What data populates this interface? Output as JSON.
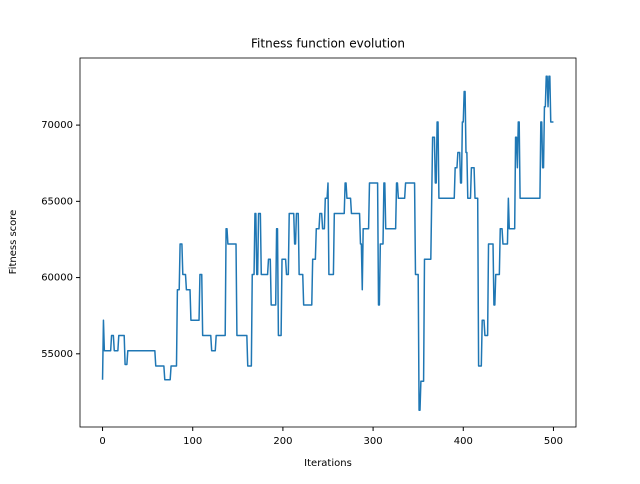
{
  "chart_data": {
    "type": "line",
    "title": "Fitness function evolution",
    "x_label": "Iterations",
    "y_label": "Fitness score",
    "xlim": [
      -25,
      525
    ],
    "ylim": [
      50200,
      74400
    ],
    "xticks": [
      0,
      100,
      200,
      300,
      400,
      500
    ],
    "yticks": [
      55000,
      60000,
      65000,
      70000
    ],
    "grid": false,
    "series": [
      {
        "color": "#1f77b4",
        "x": [
          0,
          1,
          2,
          9,
          10,
          12,
          13,
          17,
          18,
          24,
          25,
          27,
          28,
          58,
          59,
          68,
          69,
          75,
          76,
          82,
          83,
          85,
          86,
          88,
          89,
          92,
          93,
          97,
          98,
          107,
          108,
          110,
          111,
          120,
          121,
          125,
          126,
          136,
          137,
          138,
          139,
          148,
          149,
          160,
          161,
          165,
          166,
          168,
          169,
          170,
          171,
          172,
          173,
          175,
          176,
          183,
          184,
          186,
          187,
          192,
          193,
          194,
          195,
          198,
          199,
          203,
          204,
          206,
          207,
          212,
          213,
          214,
          215,
          217,
          218,
          222,
          223,
          232,
          233,
          236,
          237,
          240,
          241,
          243,
          244,
          246,
          247,
          249,
          250,
          251,
          256,
          257,
          268,
          269,
          270,
          271,
          275,
          276,
          285,
          286,
          287,
          288,
          289,
          295,
          296,
          305,
          306,
          307,
          308,
          311,
          312,
          313,
          314,
          325,
          326,
          327,
          328,
          335,
          336,
          346,
          347,
          350,
          351,
          352,
          353,
          356,
          357,
          364,
          365,
          366,
          368,
          369,
          370,
          371,
          372,
          373,
          390,
          391,
          393,
          394,
          396,
          397,
          398,
          399,
          400,
          401,
          402,
          403,
          404,
          405,
          408,
          409,
          412,
          413,
          416,
          417,
          420,
          421,
          423,
          424,
          427,
          428,
          433,
          434,
          435,
          436,
          440,
          441,
          443,
          444,
          449,
          450,
          451,
          457,
          458,
          459,
          460,
          461,
          462,
          463,
          485,
          486,
          487,
          488,
          489,
          490,
          491,
          492,
          493,
          494,
          495,
          496,
          497,
          500
        ],
        "values": [
          53300,
          57200,
          55200,
          55200,
          56200,
          56200,
          55200,
          55200,
          56200,
          56200,
          54300,
          54300,
          55200,
          55200,
          54200,
          54200,
          53300,
          53300,
          54200,
          54200,
          59200,
          59200,
          62200,
          62200,
          60200,
          60200,
          59200,
          59200,
          57200,
          57200,
          60200,
          60200,
          56200,
          56200,
          55200,
          55200,
          56200,
          56200,
          63200,
          63200,
          62200,
          62200,
          56200,
          56200,
          54200,
          54200,
          60200,
          60200,
          64200,
          64200,
          60200,
          60200,
          64200,
          64200,
          60200,
          60200,
          61200,
          61200,
          58200,
          58200,
          63200,
          63200,
          56200,
          56200,
          61200,
          61200,
          60200,
          60200,
          64200,
          64200,
          62200,
          62200,
          64200,
          64200,
          60200,
          60200,
          58200,
          58200,
          61200,
          61200,
          63200,
          63200,
          64200,
          64200,
          63200,
          63200,
          65200,
          65200,
          66200,
          60200,
          60200,
          64200,
          64200,
          66200,
          66200,
          65200,
          65200,
          64200,
          64200,
          62200,
          62200,
          59200,
          63200,
          63200,
          66200,
          66200,
          58200,
          58200,
          62200,
          62200,
          66200,
          66200,
          63200,
          63200,
          66200,
          66200,
          65200,
          65200,
          66200,
          66200,
          60200,
          60200,
          51300,
          51300,
          53200,
          53200,
          61200,
          61200,
          65200,
          69200,
          69200,
          66200,
          66200,
          70200,
          70200,
          65200,
          65200,
          67200,
          67200,
          68200,
          68200,
          66200,
          66200,
          70200,
          70200,
          72200,
          72200,
          68200,
          68200,
          65200,
          65200,
          67200,
          67200,
          65200,
          65200,
          54200,
          54200,
          57200,
          57200,
          56200,
          56200,
          62200,
          62200,
          58200,
          58200,
          60200,
          60200,
          63200,
          63200,
          62200,
          62200,
          65200,
          63200,
          63200,
          69200,
          69200,
          67200,
          70200,
          70200,
          65200,
          65200,
          70200,
          70200,
          67200,
          67200,
          71200,
          71200,
          73200,
          73200,
          71200,
          73200,
          73200,
          70200,
          70200
        ]
      }
    ]
  }
}
